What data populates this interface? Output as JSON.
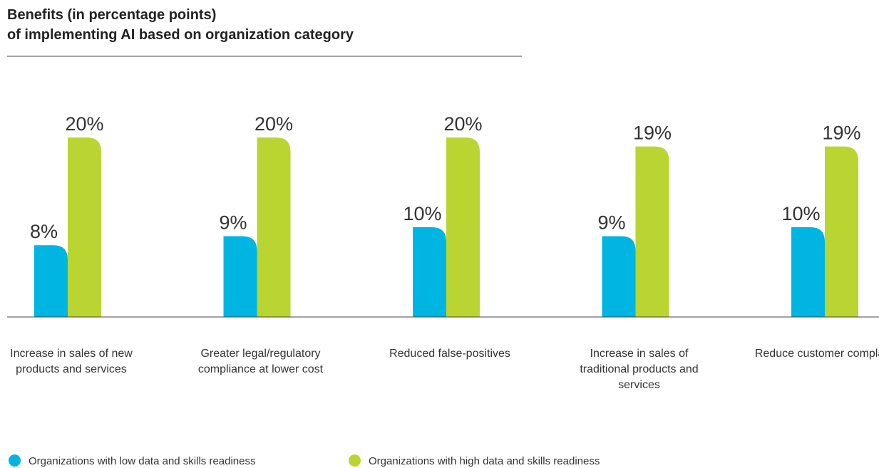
{
  "chart_data": {
    "type": "bar",
    "title": [
      "Benefits (in percentage points)",
      "of implementing AI based on organization category"
    ],
    "categories": [
      "Increase in sales of new products and services",
      "Greater legal/regulatory compliance at lower cost",
      "Reduced false-positives",
      "Increase in sales of traditional products and services",
      "Reduce customer complaints"
    ],
    "series": [
      {
        "name": "Organizations with low data and skills readiness",
        "color": "#00b5e2",
        "values": [
          8,
          9,
          10,
          9,
          10
        ],
        "value_labels": [
          "8%",
          "9%",
          "10%",
          "9%",
          "10%"
        ]
      },
      {
        "name": "Organizations with high data and skills readiness",
        "color": "#bad532",
        "values": [
          20,
          20,
          20,
          19,
          19
        ],
        "value_labels": [
          "20%",
          "20%",
          "20%",
          "19%",
          "19%"
        ]
      }
    ]
  }
}
